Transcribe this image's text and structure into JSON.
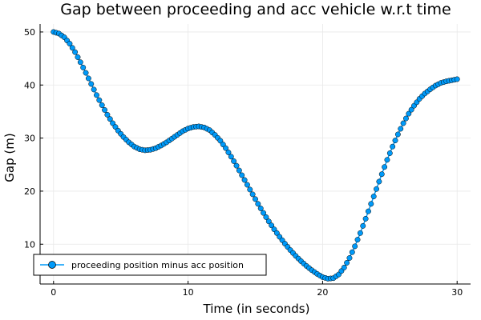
{
  "chart_data": {
    "type": "scatter",
    "title": "Gap between proceeding and acc vehicle w.r.t time",
    "xlabel": "Time (in seconds)",
    "ylabel": "Gap (m)",
    "xlim": [
      -1,
      31
    ],
    "ylim": [
      2.5,
      51.5
    ],
    "xticks": [
      0,
      10,
      20,
      30
    ],
    "yticks": [
      10,
      20,
      30,
      40,
      50
    ],
    "grid": true,
    "legend_position": "bottom-left",
    "series_color": "#009af9",
    "series": [
      {
        "name": "proceeding position minus acc position",
        "style": "line-with-markers",
        "x_start": 0,
        "x_step": 0.2,
        "x_end": 30,
        "key_points": [
          [
            0,
            50
          ],
          [
            0.4,
            49.7
          ],
          [
            0.8,
            49
          ],
          [
            1.2,
            47.8
          ],
          [
            1.6,
            46.2
          ],
          [
            2,
            44.3
          ],
          [
            2.4,
            42.3
          ],
          [
            2.8,
            40.2
          ],
          [
            3.2,
            38.1
          ],
          [
            3.6,
            36.2
          ],
          [
            4,
            34.4
          ],
          [
            4.4,
            32.8
          ],
          [
            4.8,
            31.4
          ],
          [
            5.2,
            30.2
          ],
          [
            5.6,
            29.2
          ],
          [
            6,
            28.4
          ],
          [
            6.4,
            27.9
          ],
          [
            6.8,
            27.7
          ],
          [
            7.2,
            27.8
          ],
          [
            7.6,
            28.1
          ],
          [
            8,
            28.6
          ],
          [
            8.4,
            29.2
          ],
          [
            8.8,
            29.9
          ],
          [
            9.2,
            30.6
          ],
          [
            9.6,
            31.3
          ],
          [
            10,
            31.8
          ],
          [
            10.4,
            32.1
          ],
          [
            10.8,
            32.2
          ],
          [
            11.2,
            32
          ],
          [
            11.6,
            31.5
          ],
          [
            12,
            30.6
          ],
          [
            12.4,
            29.5
          ],
          [
            12.8,
            28.1
          ],
          [
            13.2,
            26.5
          ],
          [
            13.6,
            24.8
          ],
          [
            14,
            23
          ],
          [
            14.4,
            21.2
          ],
          [
            14.8,
            19.4
          ],
          [
            15.2,
            17.6
          ],
          [
            15.6,
            15.9
          ],
          [
            16,
            14.3
          ],
          [
            16.4,
            12.8
          ],
          [
            16.8,
            11.4
          ],
          [
            17.2,
            10.1
          ],
          [
            17.6,
            8.9
          ],
          [
            18,
            7.8
          ],
          [
            18.4,
            6.8
          ],
          [
            18.8,
            5.9
          ],
          [
            19.2,
            5.1
          ],
          [
            19.6,
            4.4
          ],
          [
            20,
            3.8
          ],
          [
            20.4,
            3.5
          ],
          [
            20.8,
            3.6
          ],
          [
            21.2,
            4.3
          ],
          [
            21.6,
            5.6
          ],
          [
            22,
            7.4
          ],
          [
            22.4,
            9.6
          ],
          [
            22.8,
            12.1
          ],
          [
            23.2,
            14.8
          ],
          [
            23.6,
            17.6
          ],
          [
            24,
            20.4
          ],
          [
            24.4,
            23.2
          ],
          [
            24.8,
            25.9
          ],
          [
            25.2,
            28.4
          ],
          [
            25.6,
            30.7
          ],
          [
            26,
            32.8
          ],
          [
            26.4,
            34.6
          ],
          [
            26.8,
            36.1
          ],
          [
            27.2,
            37.4
          ],
          [
            27.6,
            38.4
          ],
          [
            28,
            39.2
          ],
          [
            28.4,
            39.9
          ],
          [
            28.8,
            40.4
          ],
          [
            29.2,
            40.7
          ],
          [
            29.6,
            40.9
          ],
          [
            30,
            41.1
          ]
        ]
      }
    ]
  }
}
